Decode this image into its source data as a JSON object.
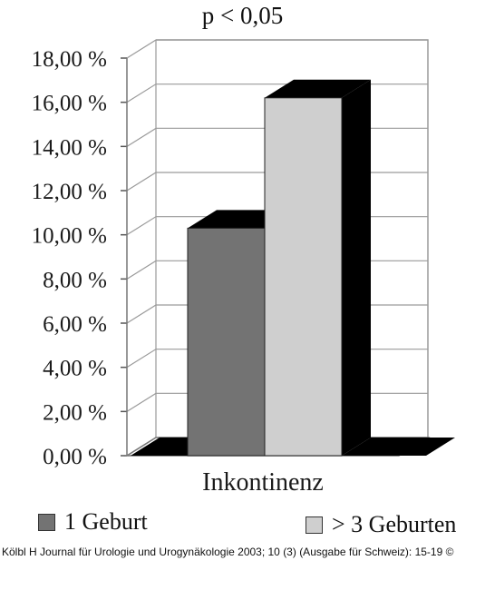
{
  "chart_data": {
    "type": "bar",
    "title": "p < 0,05",
    "categories": [
      "Inkontinenz"
    ],
    "series": [
      {
        "name": "1 Geburt",
        "values": [
          10.3
        ],
        "color": "#737373"
      },
      {
        "name": "> 3 Geburten",
        "values": [
          16.2
        ],
        "color": "#cfcfcf"
      }
    ],
    "ylim": [
      0,
      18
    ],
    "yticks": [
      "0,00 %",
      "2,00 %",
      "4,00 %",
      "6,00 %",
      "8,00 %",
      "10,00 %",
      "12,00 %",
      "14,00 %",
      "16,00 %",
      "18,00 %"
    ],
    "grid": true,
    "legend_position": "bottom",
    "style": "3d"
  },
  "credit": "Kölbl H Journal für Urologie und Urogynäkologie 2003; 10 (3) (Ausgabe für Schweiz): 15-19 ©"
}
